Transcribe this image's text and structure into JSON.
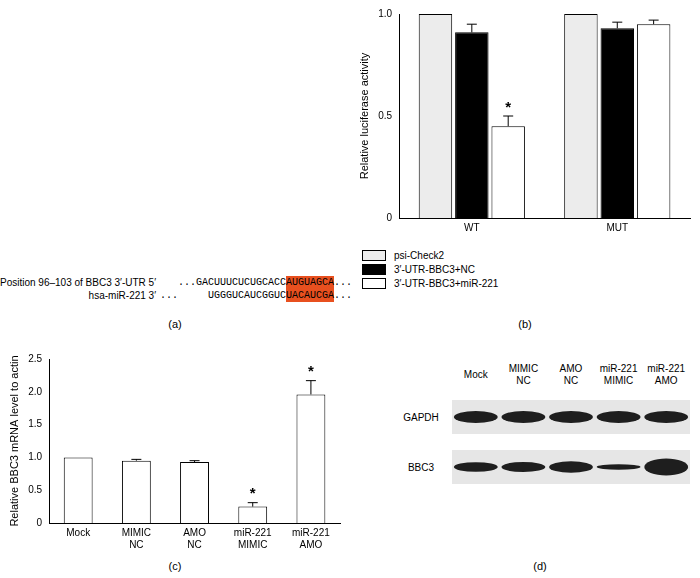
{
  "chart_data": [
    {
      "type": "bar",
      "title": "(b)",
      "y_label": "Relative luciferase activity",
      "categories": [
        "WT",
        "MUT"
      ],
      "series": [
        {
          "name": "psi-Check2",
          "color": "#ececec",
          "values": [
            1.0,
            1.0
          ],
          "errors": [
            0,
            0
          ]
        },
        {
          "name": "3′-UTR-BBC3+NC",
          "color": "#000000",
          "values": [
            0.91,
            0.93
          ],
          "errors": [
            0.04,
            0.03
          ]
        },
        {
          "name": "3′-UTR-BBC3+miR-221",
          "color": "#ffffff",
          "values": [
            0.45,
            0.95
          ],
          "errors": [
            0.05,
            0.02
          ]
        }
      ],
      "annotations": [
        {
          "series": "3′-UTR-BBC3+miR-221",
          "category": "WT",
          "text": "*"
        }
      ],
      "ylim": [
        0,
        1
      ],
      "yticks": [
        0,
        0.5,
        {
          "value": 1,
          "label": "1.0"
        }
      ],
      "grid": false,
      "legend": "bottom"
    },
    {
      "type": "bar",
      "title": "(c)",
      "y_label": "Relative BBC3 mRNA level to actin",
      "categories": [
        "Mock",
        "MIMIC NC",
        "AMO NC",
        "miR-221 MIMIC",
        "miR-221 AMO"
      ],
      "values": [
        1.0,
        0.95,
        0.93,
        0.25,
        1.96
      ],
      "errors": [
        0,
        0.02,
        0.02,
        0.06,
        0.21
      ],
      "color": "#ffffff",
      "annotations": [
        {
          "category": "miR-221 MIMIC",
          "text": "*"
        },
        {
          "category": "miR-221 AMO",
          "text": "*"
        }
      ],
      "ylim": [
        0,
        2.5
      ],
      "yticks": [
        0,
        0.5,
        {
          "value": 1,
          "label": "1.0"
        },
        1.5,
        {
          "value": 2,
          "label": "2.0"
        },
        2.5
      ],
      "grid": false
    }
  ],
  "sequence_alignment": {
    "title": "(a)",
    "highlight_color": "#e8501f",
    "rows": [
      {
        "label": "Position 96–103 of BBC3 3′-UTR 5′",
        "before": "...GACUUUCUCUGCACC",
        "highlight": "AUGUAGCA",
        "after": "..."
      },
      {
        "label": "hsa-miR-221 3′",
        "before": "...     UGGGUCAUCGGUC",
        "highlight": "UACAUCGA",
        "after": "..."
      }
    ]
  },
  "western_blot": {
    "title": "(d)",
    "lanes": [
      "Mock",
      "MIMIC NC",
      "AMO NC",
      "miR-221 MIMIC",
      "miR-221 AMO"
    ],
    "rows": [
      {
        "label": "GAPDH",
        "band_strength": [
          1.0,
          1.0,
          1.0,
          1.0,
          1.0
        ]
      },
      {
        "label": "BBC3",
        "band_strength": [
          0.8,
          0.85,
          0.95,
          0.45,
          1.4
        ]
      }
    ]
  }
}
